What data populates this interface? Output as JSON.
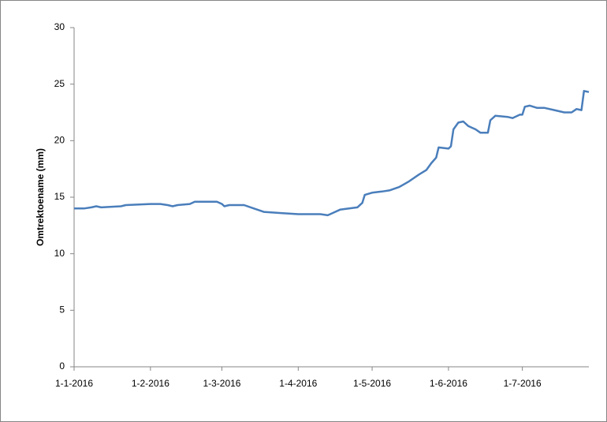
{
  "chart_data": {
    "type": "line",
    "y_label": "Omtrektoename (mm)",
    "x": [
      "2016-01-01",
      "2016-01-05",
      "2016-01-08",
      "2016-01-10",
      "2016-01-12",
      "2016-01-20",
      "2016-01-22",
      "2016-02-01",
      "2016-02-05",
      "2016-02-08",
      "2016-02-10",
      "2016-02-12",
      "2016-02-17",
      "2016-02-19",
      "2016-02-23",
      "2016-02-28",
      "2016-03-01",
      "2016-03-02",
      "2016-03-04",
      "2016-03-10",
      "2016-03-14",
      "2016-03-18",
      "2016-03-25",
      "2016-04-01",
      "2016-04-10",
      "2016-04-13",
      "2016-04-16",
      "2016-04-18",
      "2016-04-25",
      "2016-04-27",
      "2016-04-28",
      "2016-05-01",
      "2016-05-05",
      "2016-05-08",
      "2016-05-12",
      "2016-05-16",
      "2016-05-20",
      "2016-05-23",
      "2016-05-25",
      "2016-05-27",
      "2016-05-28",
      "2016-06-01",
      "2016-06-02",
      "2016-06-03",
      "2016-06-05",
      "2016-06-07",
      "2016-06-09",
      "2016-06-12",
      "2016-06-14",
      "2016-06-17",
      "2016-06-18",
      "2016-06-20",
      "2016-06-25",
      "2016-06-27",
      "2016-06-30",
      "2016-07-01",
      "2016-07-02",
      "2016-07-04",
      "2016-07-07",
      "2016-07-10",
      "2016-07-14",
      "2016-07-18",
      "2016-07-21",
      "2016-07-23",
      "2016-07-25",
      "2016-07-26",
      "2016-07-28"
    ],
    "series": [
      {
        "name": "Omtrektoename",
        "color": "#4a7ebb",
        "values": [
          14.0,
          14.0,
          14.1,
          14.2,
          14.1,
          14.2,
          14.3,
          14.4,
          14.4,
          14.3,
          14.2,
          14.3,
          14.4,
          14.6,
          14.6,
          14.6,
          14.4,
          14.2,
          14.3,
          14.3,
          14.0,
          13.7,
          13.6,
          13.5,
          13.5,
          13.4,
          13.7,
          13.9,
          14.1,
          14.5,
          15.2,
          15.4,
          15.5,
          15.6,
          15.9,
          16.4,
          17.0,
          17.4,
          18.0,
          18.5,
          19.4,
          19.3,
          19.5,
          21.0,
          21.6,
          21.7,
          21.3,
          21.0,
          20.7,
          20.7,
          21.8,
          22.2,
          22.1,
          22.0,
          22.3,
          22.3,
          23.0,
          23.1,
          22.9,
          22.9,
          22.7,
          22.5,
          22.5,
          22.8,
          22.7,
          24.4,
          24.3
        ]
      }
    ],
    "xlim": [
      "2016-01-01",
      "2016-07-28"
    ],
    "xticks": [
      {
        "value": "2016-01-01",
        "label": "1-1-2016"
      },
      {
        "value": "2016-02-01",
        "label": "1-2-2016"
      },
      {
        "value": "2016-03-01",
        "label": "1-3-2016"
      },
      {
        "value": "2016-04-01",
        "label": "1-4-2016"
      },
      {
        "value": "2016-05-01",
        "label": "1-5-2016"
      },
      {
        "value": "2016-06-01",
        "label": "1-6-2016"
      },
      {
        "value": "2016-07-01",
        "label": "1-7-2016"
      }
    ],
    "ylim": [
      0,
      30
    ],
    "yticks": [
      0,
      5,
      10,
      15,
      20,
      25,
      30
    ],
    "grid": false
  }
}
